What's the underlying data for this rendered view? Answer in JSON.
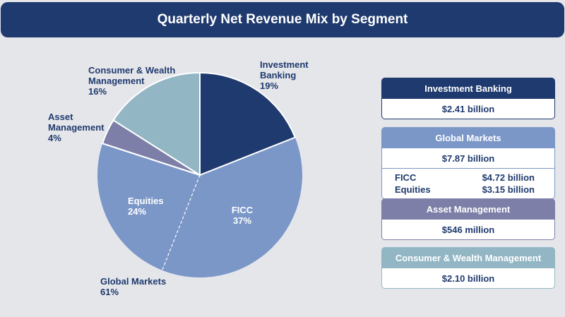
{
  "title": "Quarterly Net Revenue Mix by Segment",
  "colors": {
    "investment_banking": "#1f3a6e",
    "global_markets": "#7b97c8",
    "asset_management": "#7d7fa8",
    "consumer_wealth": "#93b6c5",
    "divider": "#ffffff"
  },
  "chart_data": {
    "type": "pie",
    "title": "Quarterly Net Revenue Mix by Segment",
    "slices": [
      {
        "name": "Investment Banking",
        "label_lines": [
          "Investment",
          "Banking"
        ],
        "percent_label": "19%",
        "value": 19
      },
      {
        "name": "FICC",
        "label_lines": [
          "FICC"
        ],
        "percent_label": "37%",
        "value": 37
      },
      {
        "name": "Equities",
        "label_lines": [
          "Equities"
        ],
        "percent_label": "24%",
        "value": 24
      },
      {
        "name": "Asset Management",
        "label_lines": [
          "Asset",
          "Management"
        ],
        "percent_label": "4%",
        "value": 4
      },
      {
        "name": "Consumer & Wealth Management",
        "label_lines": [
          "Consumer & Wealth",
          "Management"
        ],
        "percent_label": "16%",
        "value": 16
      }
    ],
    "group_label": {
      "name": "Global Markets",
      "percent_label": "61%",
      "members": [
        "FICC",
        "Equities"
      ]
    }
  },
  "panels": {
    "investment_banking": {
      "title": "Investment Banking",
      "value": "$2.41 billion"
    },
    "global_markets": {
      "title": "Global Markets",
      "value": "$7.87 billion",
      "rows": [
        {
          "label": "FICC",
          "value": "$4.72 billion"
        },
        {
          "label": "Equities",
          "value": "$3.15 billion"
        }
      ]
    },
    "asset_management": {
      "title": "Asset Management",
      "value": "$546 million"
    },
    "consumer_wealth": {
      "title": "Consumer & Wealth Management",
      "value": "$2.10 billion"
    }
  }
}
